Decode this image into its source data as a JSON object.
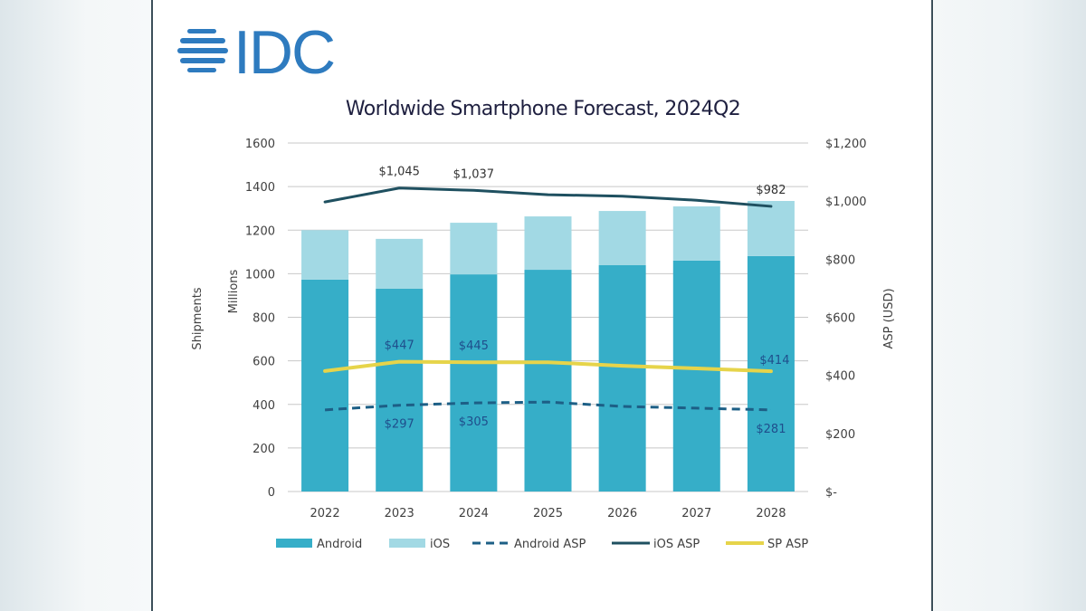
{
  "brand": {
    "logo_text": "IDC",
    "logo_color": "#2E7BBF"
  },
  "chart_data": {
    "type": "bar",
    "subtype": "stacked-bar-with-lines-dual-axis",
    "title": "Worldwide Smartphone Forecast, 2024Q2",
    "categories": [
      "2022",
      "2023",
      "2024",
      "2025",
      "2026",
      "2027",
      "2028"
    ],
    "y_left": {
      "label": "Shipments",
      "sublabel": "Millions",
      "range": [
        0,
        1600
      ],
      "ticks": [
        0,
        200,
        400,
        600,
        800,
        1000,
        1200,
        1400,
        1600
      ],
      "tick_labels": [
        "0",
        "200",
        "400",
        "600",
        "800",
        "1000",
        "1200",
        "1400",
        "1600"
      ]
    },
    "y_right": {
      "label": "ASP (USD)",
      "range": [
        0,
        1200
      ],
      "ticks": [
        0,
        200,
        400,
        600,
        800,
        1000,
        1200
      ],
      "tick_labels": [
        "$-",
        "$200",
        "$400",
        "$600",
        "$800",
        "$1,000",
        "$1,200"
      ]
    },
    "grid": true,
    "legend_position": "bottom",
    "series": [
      {
        "name": "Android",
        "type": "bar",
        "axis": "left",
        "stack": "shipments",
        "color": "#36AEC8",
        "values": [
          973,
          931,
          997,
          1018,
          1039,
          1060,
          1081
        ]
      },
      {
        "name": "iOS",
        "type": "bar",
        "axis": "left",
        "stack": "shipments",
        "color": "#A2D9E4",
        "values": [
          227,
          229,
          237,
          245,
          249,
          249,
          253
        ]
      },
      {
        "name": "Android ASP",
        "type": "line",
        "style": "dashed",
        "axis": "right",
        "color": "#1D5F86",
        "values": [
          281,
          297,
          305,
          308,
          293,
          287,
          281
        ],
        "data_labels": [
          null,
          "$297",
          "$305",
          null,
          null,
          null,
          "$281"
        ]
      },
      {
        "name": "iOS ASP",
        "type": "line",
        "style": "solid",
        "axis": "right",
        "color": "#1F5060",
        "values": [
          997,
          1045,
          1037,
          1022,
          1017,
          1003,
          982
        ],
        "data_labels": [
          null,
          "$1,045",
          "$1,037",
          null,
          null,
          null,
          "$982"
        ]
      },
      {
        "name": "SP ASP",
        "type": "line",
        "style": "solid",
        "axis": "right",
        "color": "#E6D44A",
        "values": [
          415,
          447,
          445,
          445,
          433,
          424,
          414
        ],
        "data_labels": [
          null,
          "$447",
          "$445",
          null,
          null,
          null,
          "$414"
        ]
      }
    ]
  }
}
